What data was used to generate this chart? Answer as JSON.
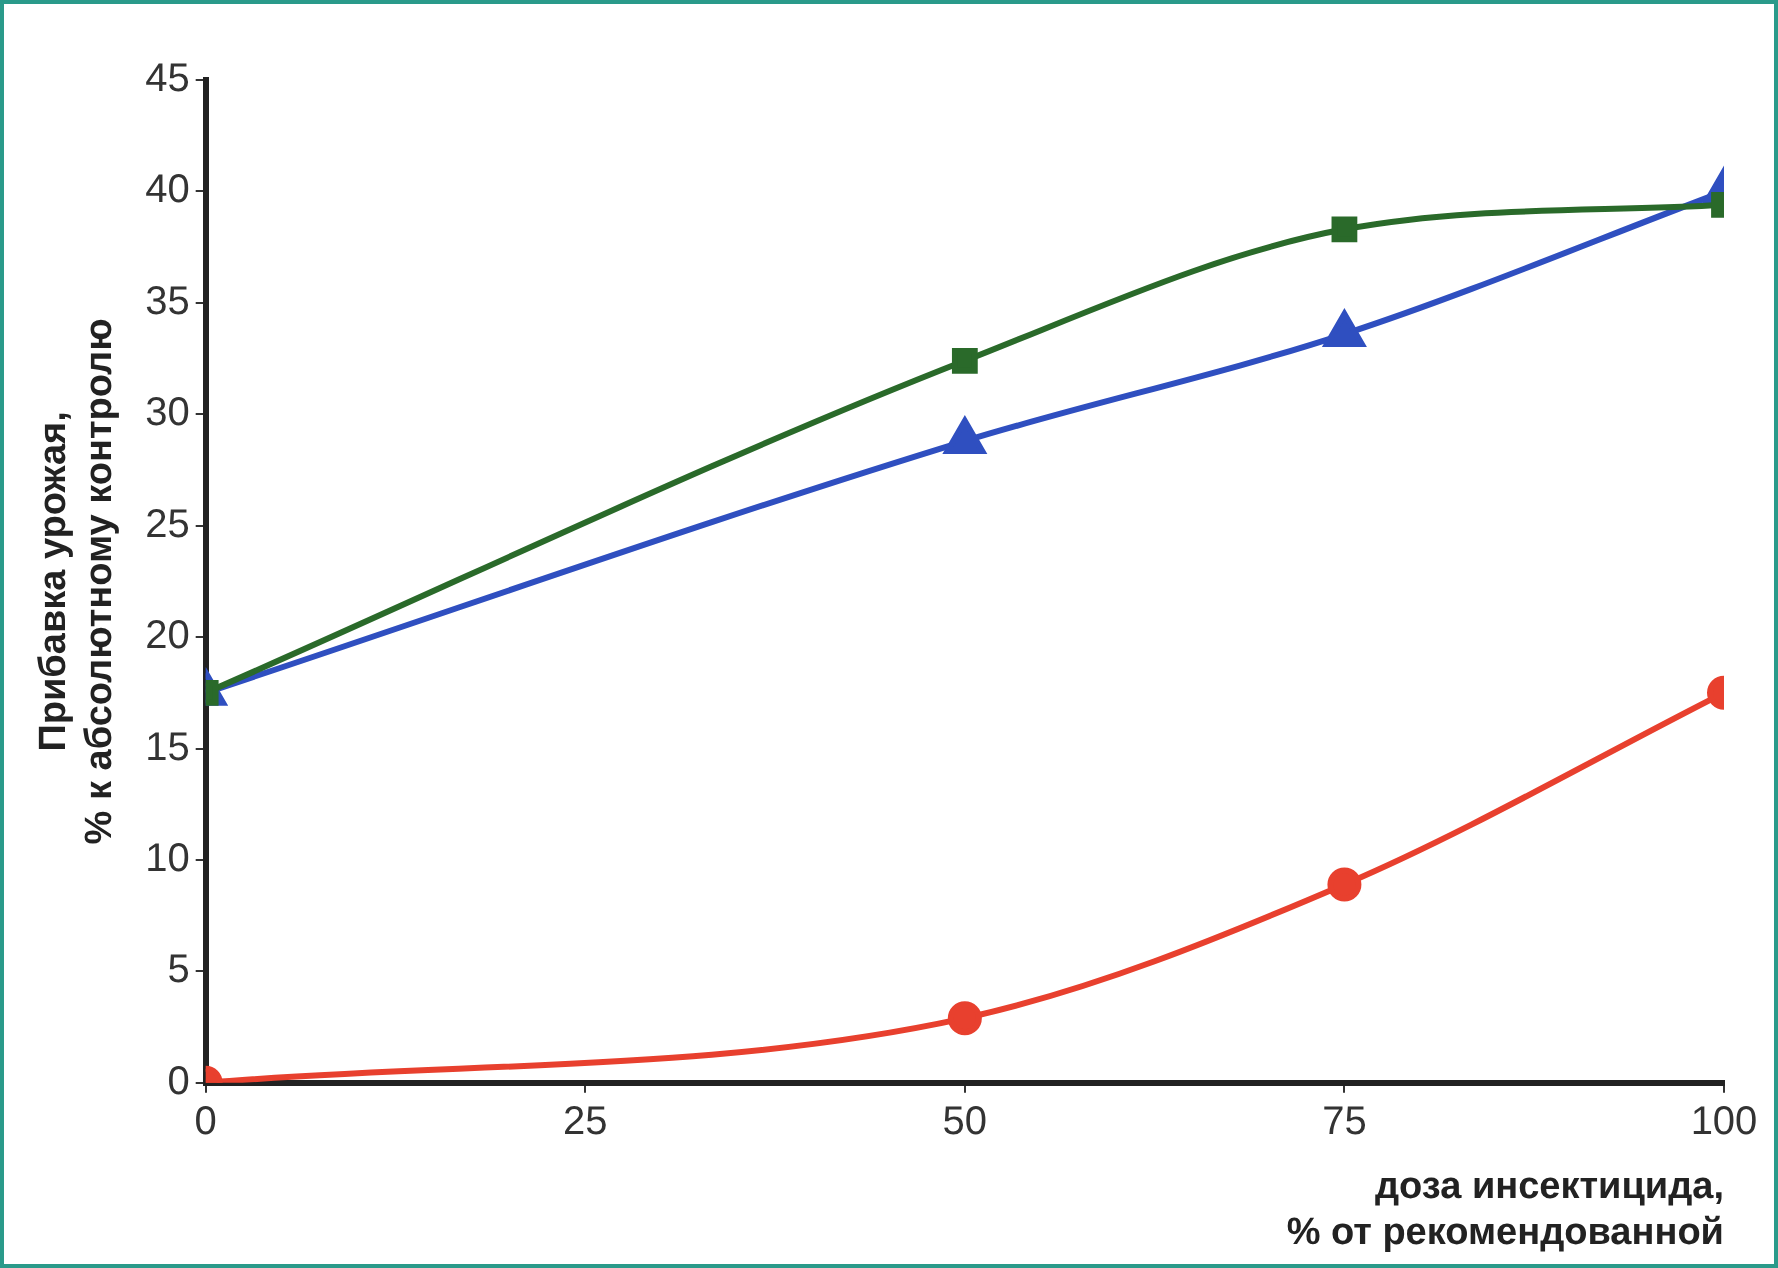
{
  "chart_data": {
    "type": "line",
    "xlabel": "доза инсектицида,\n% от рекомендованной",
    "ylabel": "Прибавка урожая,\n% к абсолютному контролю",
    "x": [
      0,
      50,
      75,
      100
    ],
    "series": [
      {
        "color": "#2a6a2a",
        "marker": "square",
        "values": [
          17.5,
          32.4,
          38.3,
          39.4
        ]
      },
      {
        "color": "#2f4fc0",
        "marker": "triangle",
        "values": [
          17.5,
          28.8,
          33.6,
          40
        ]
      },
      {
        "color": "#e8402e",
        "marker": "circle",
        "values": [
          0,
          2.9,
          8.9,
          17.5
        ]
      }
    ],
    "xlim": [
      0,
      100
    ],
    "xticks": [
      0,
      25,
      50,
      75,
      100
    ],
    "ylim": [
      0,
      45
    ],
    "yticks": [
      0,
      5,
      10,
      15,
      20,
      25,
      30,
      35,
      40,
      45
    ],
    "grid": false,
    "legend": false
  }
}
